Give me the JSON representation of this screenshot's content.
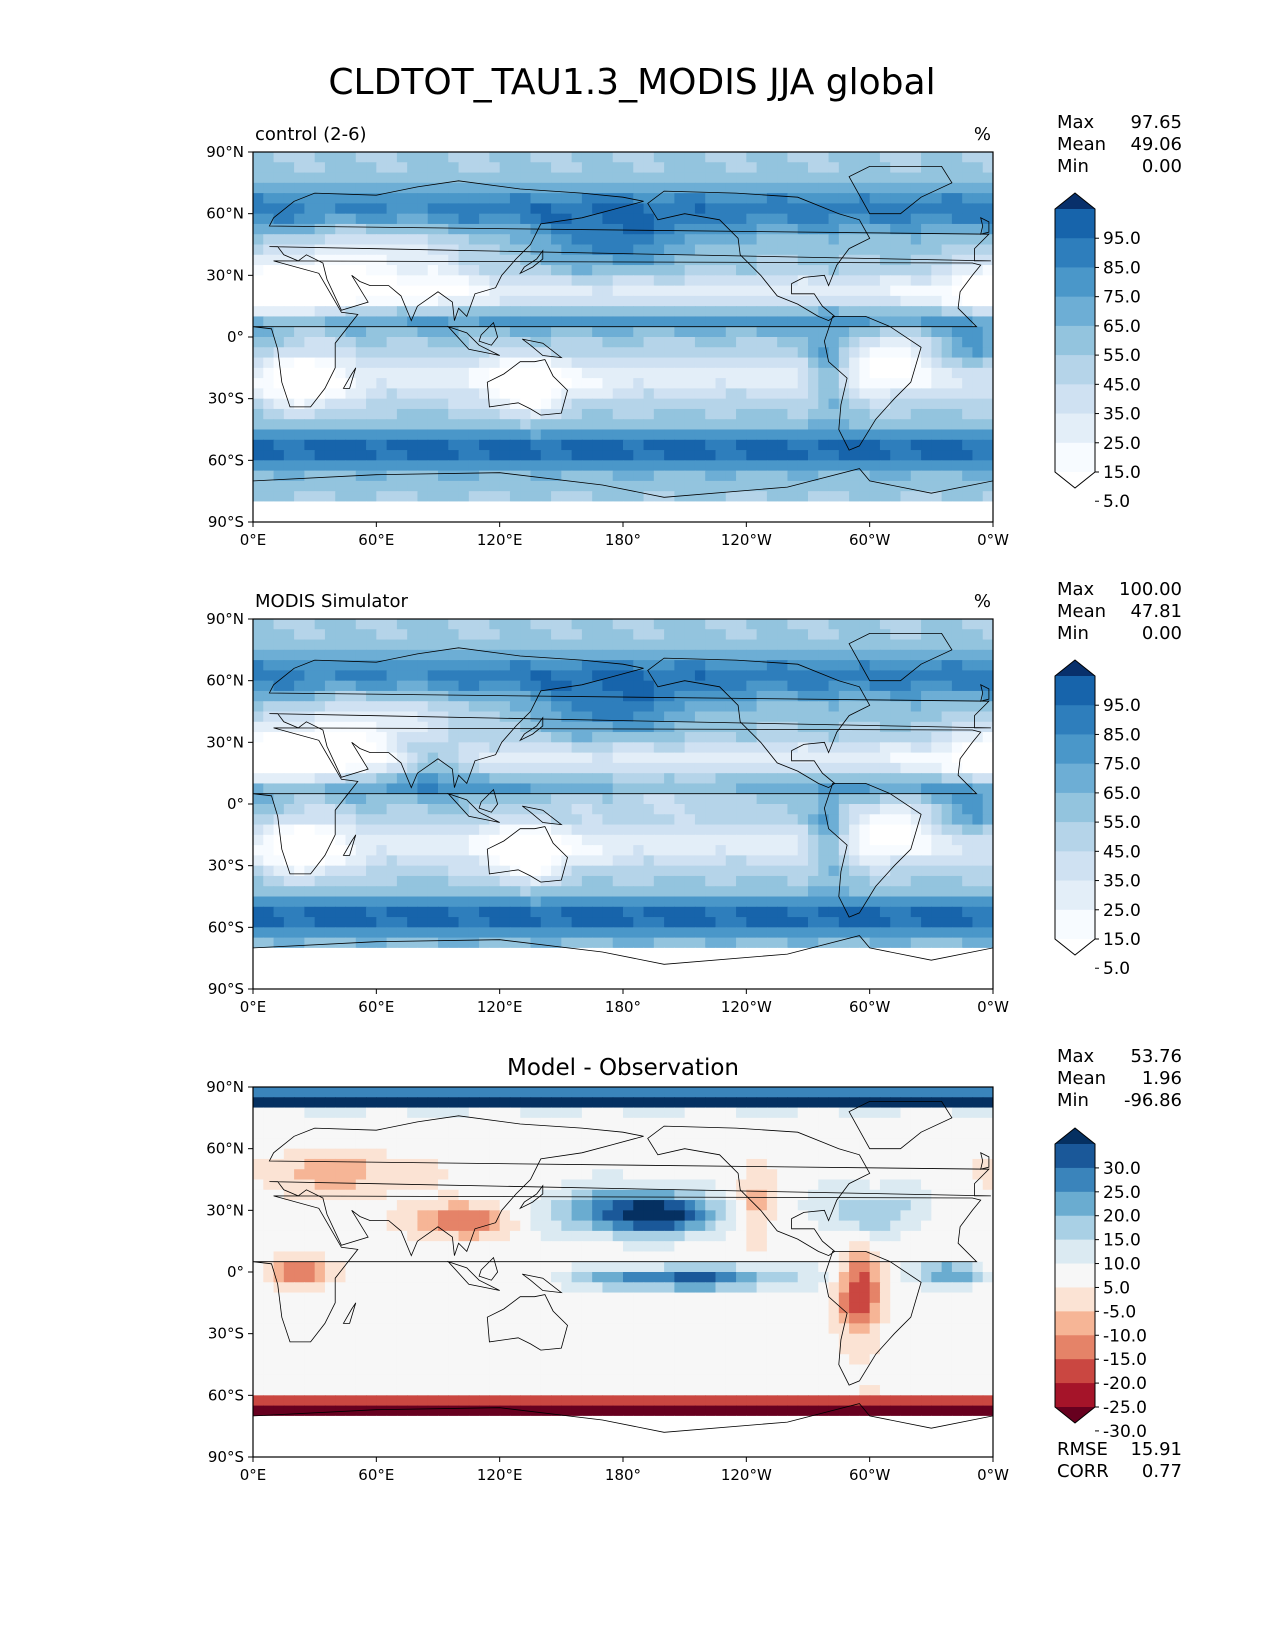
{
  "title": "CLDTOT_TAU1.3_MODIS JJA global",
  "lat_ticks": [
    "90°N",
    "60°N",
    "30°N",
    "0°",
    "30°S",
    "60°S",
    "90°S"
  ],
  "lon_ticks": [
    "0°E",
    "60°E",
    "120°E",
    "180°",
    "120°W",
    "60°W",
    "0°W"
  ],
  "stat_labels": {
    "max": "Max",
    "mean": "Mean",
    "min": "Min",
    "rmse": "RMSE",
    "corr": "CORR"
  },
  "colors": {
    "blues": [
      "#ffffff",
      "#f7fbff",
      "#e3eef8",
      "#cfe1f2",
      "#b5d4e9",
      "#93c4de",
      "#6daed5",
      "#4a97c9",
      "#2e7ebc",
      "#1764ab",
      "#08306b"
    ],
    "diverging": [
      "#67001f",
      "#a51429",
      "#ca4741",
      "#e58368",
      "#f6b596",
      "#fbe3d4",
      "#f7f7f7",
      "#dbeaf2",
      "#a9d0e5",
      "#6aacd0",
      "#3a84bb",
      "#1a5899",
      "#053061"
    ]
  },
  "panels": [
    {
      "id": "control",
      "left_title": "control (2-6)",
      "center_title": "",
      "units": "%",
      "stats": {
        "max": "97.65",
        "mean": "49.06",
        "min": "0.00"
      },
      "colorbar": {
        "type": "blues",
        "labels": [
          "95.0",
          "85.0",
          "75.0",
          "65.0",
          "55.0",
          "45.0",
          "35.0",
          "25.0",
          "15.0",
          "5.0"
        ]
      },
      "map_icon": "cloud-fraction-map"
    },
    {
      "id": "modis",
      "left_title": "MODIS Simulator",
      "center_title": "",
      "units": "%",
      "stats": {
        "max": "100.00",
        "mean": "47.81",
        "min": "0.00"
      },
      "colorbar": {
        "type": "blues",
        "labels": [
          "95.0",
          "85.0",
          "75.0",
          "65.0",
          "55.0",
          "45.0",
          "35.0",
          "25.0",
          "15.0",
          "5.0"
        ]
      },
      "map_icon": "cloud-fraction-map"
    },
    {
      "id": "diff",
      "left_title": "",
      "center_title": "Model - Observation",
      "units": "",
      "stats": {
        "max": "53.76",
        "mean": "1.96",
        "min": "-96.86"
      },
      "metrics": {
        "rmse": "15.91",
        "corr": "0.77"
      },
      "colorbar": {
        "type": "diverging",
        "labels": [
          "30.0",
          "25.0",
          "20.0",
          "15.0",
          "10.0",
          "5.0",
          "-5.0",
          "-10.0",
          "-15.0",
          "-20.0",
          "-25.0",
          "-30.0"
        ]
      },
      "map_icon": "difference-map"
    }
  ]
}
